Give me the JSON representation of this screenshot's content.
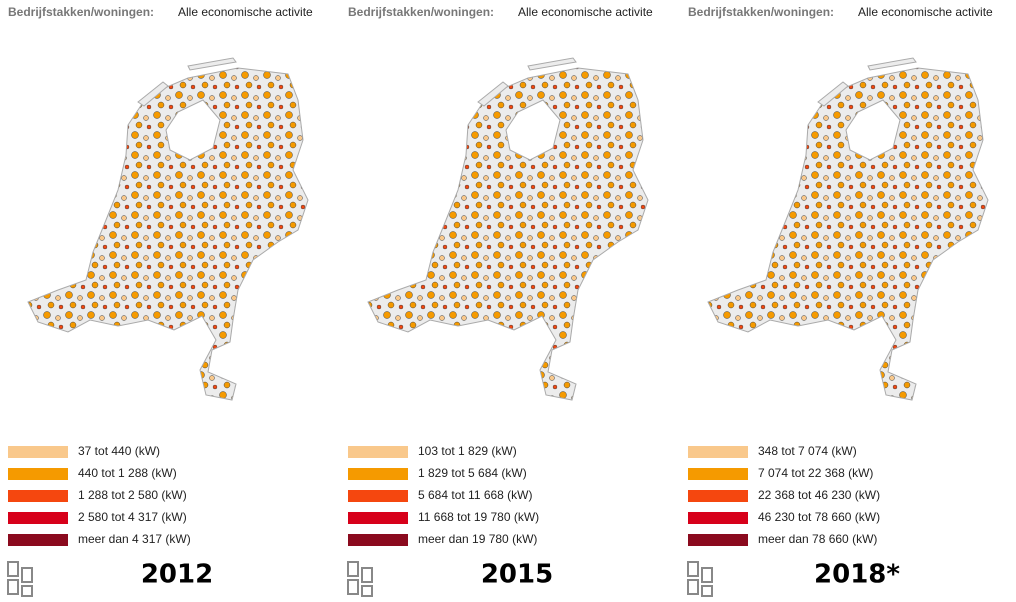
{
  "legend_colors": [
    "#f9c88b",
    "#f59a00",
    "#f5470f",
    "#d7001a",
    "#8b0a1e"
  ],
  "panels": [
    {
      "header_label": "Bedrijfstakken/woningen:",
      "header_value": "Alle economische activite",
      "legend": [
        "37 tot 440 (kW)",
        "440 tot 1 288 (kW)",
        "1 288 tot 2 580 (kW)",
        "2 580 tot 4 317 (kW)",
        "meer dan 4 317 (kW)"
      ],
      "year": "2012"
    },
    {
      "header_label": "Bedrijfstakken/woningen:",
      "header_value": "Alle economische activite",
      "legend": [
        "103 tot 1 829 (kW)",
        "1 829 tot 5 684 (kW)",
        "5 684 tot 11 668 (kW)",
        "11 668 tot 19 780 (kW)",
        "meer dan 19 780 (kW)"
      ],
      "year": "2015"
    },
    {
      "header_label": "Bedrijfstakken/woningen:",
      "header_value": "Alle economische activite",
      "legend": [
        "348 tot 7 074 (kW)",
        "7 074 tot 22 368 (kW)",
        "22 368 tot 46 230 (kW)",
        "46 230 tot 78 660 (kW)",
        "meer dan 78 660 (kW)"
      ],
      "year": "2018*"
    }
  ]
}
